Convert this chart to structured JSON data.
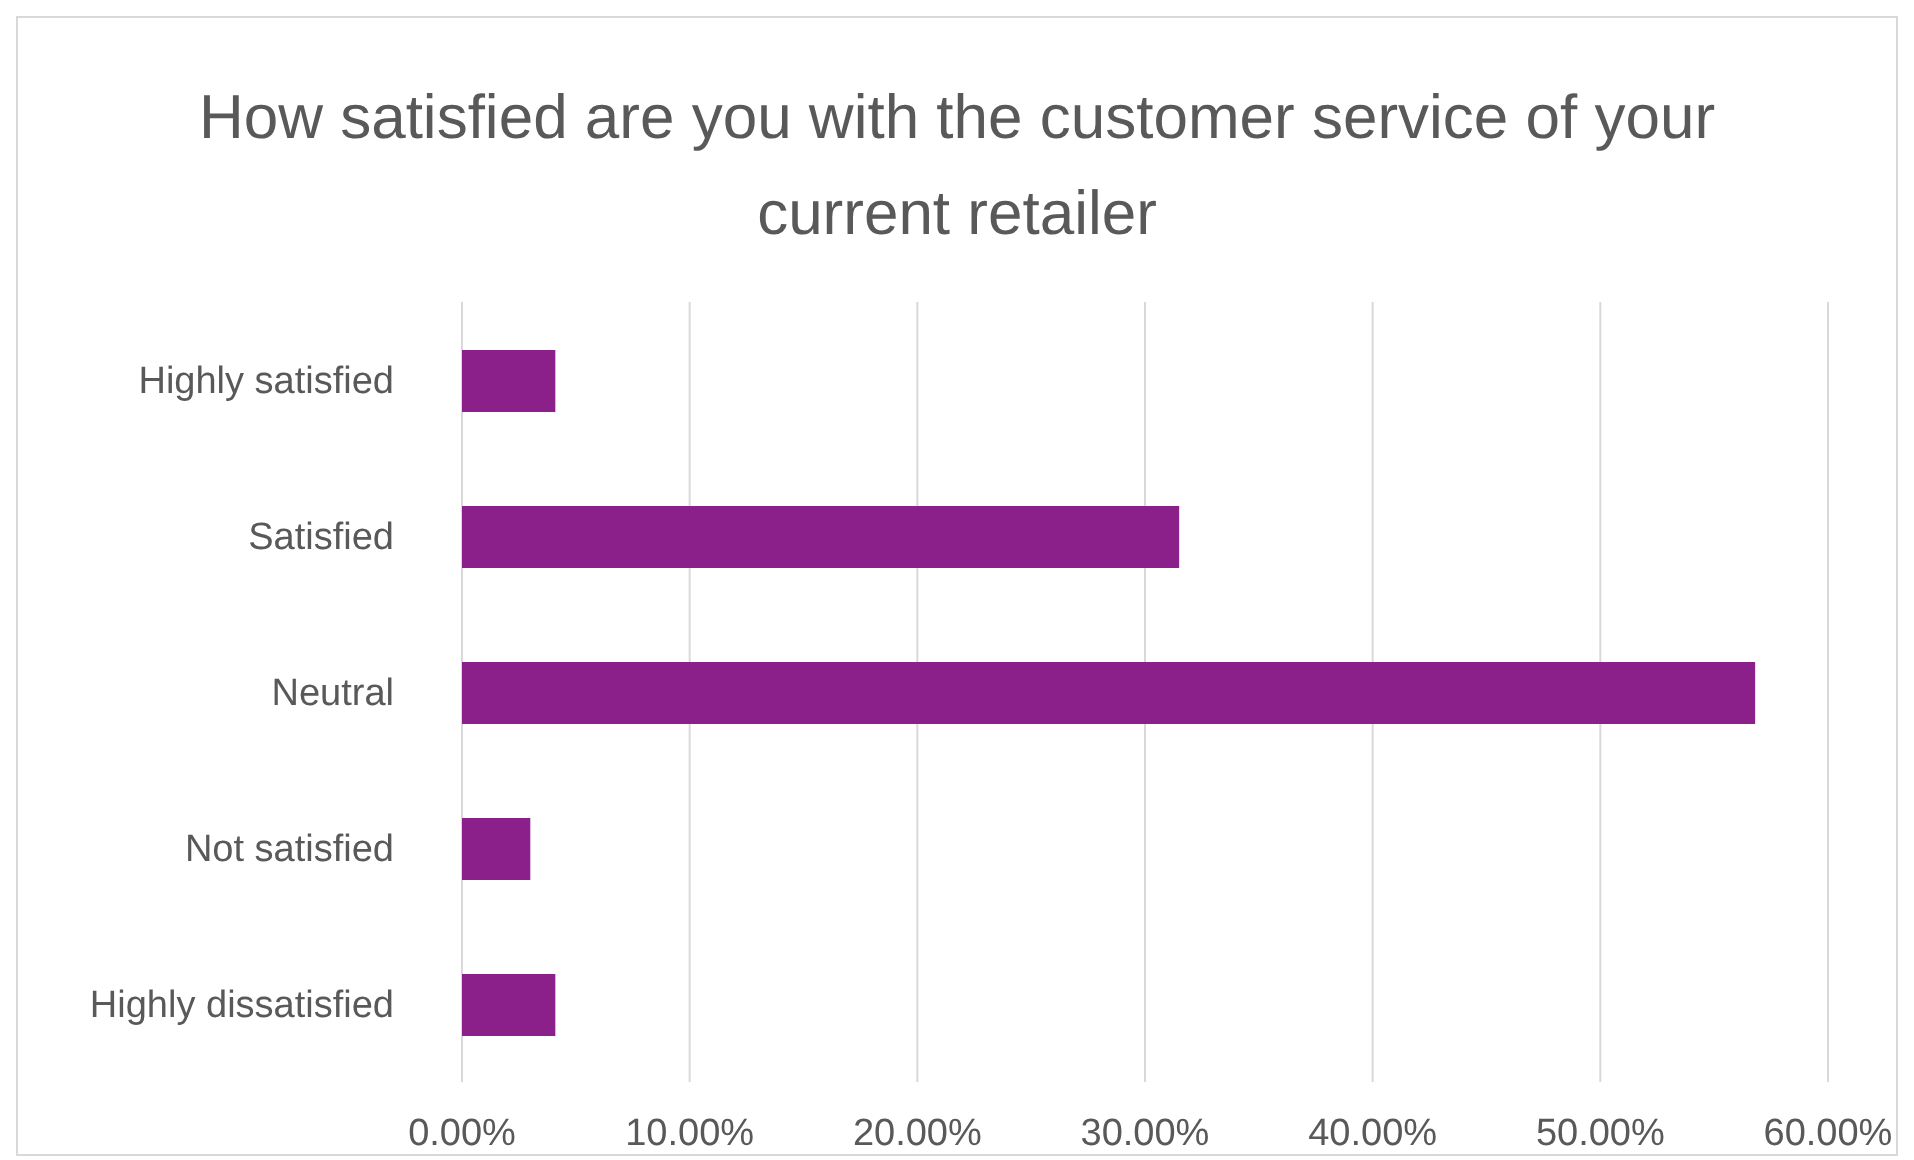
{
  "chart_data": {
    "type": "bar",
    "orientation": "horizontal",
    "title": "How satisfied are you with the customer service of your current retailer",
    "categories": [
      "Highly satisfied",
      "Satisfied",
      "Neutral",
      "Not satisfied",
      "Highly dissatisfied"
    ],
    "values": [
      4.1,
      31.5,
      56.8,
      3.0,
      4.1
    ],
    "color": "#8b208b",
    "xlim": [
      0,
      60
    ],
    "xticks": [
      {
        "value": 0,
        "label": "0.00%"
      },
      {
        "value": 10,
        "label": "10.00%"
      },
      {
        "value": 20,
        "label": "20.00%"
      },
      {
        "value": 30,
        "label": "30.00%"
      },
      {
        "value": 40,
        "label": "40.00%"
      },
      {
        "value": 50,
        "label": "50.00%"
      },
      {
        "value": 60,
        "label": "60.00%"
      }
    ],
    "grid": "x"
  }
}
